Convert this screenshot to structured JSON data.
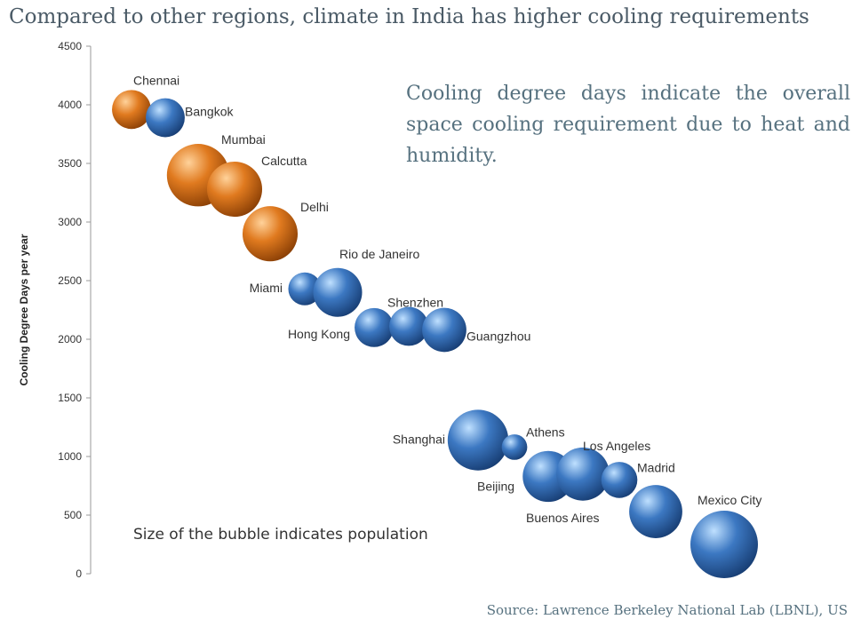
{
  "title": "Compared to other regions, climate in India has higher cooling requirements",
  "note": "Cooling degree days indicate the overall space cooling requirement due to heat and humidity.",
  "bubble_note": "Size of the bubble indicates population",
  "source": "Source: Lawrence Berkeley National Lab (LBNL), US",
  "colors": {
    "india": "#e07a1f",
    "other": "#3c78c2",
    "axis": "#999999"
  },
  "chart_data": {
    "type": "scatter",
    "title": "Compared to other regions, climate in India has higher cooling requirements",
    "ylabel": "Cooling Degree Days per year",
    "xlabel": "",
    "ylim": [
      0,
      4500
    ],
    "yticks": [
      0,
      500,
      1000,
      1500,
      2000,
      2500,
      3000,
      3500,
      4000,
      4500
    ],
    "grid": false,
    "points": [
      {
        "label": "Chennai",
        "x": 1,
        "y": 3960,
        "size": 7,
        "group": "india"
      },
      {
        "label": "Bangkok",
        "x": 2,
        "y": 3890,
        "size": 7,
        "group": "other"
      },
      {
        "label": "Mumbai",
        "x": 3,
        "y": 3400,
        "size": 18,
        "group": "india"
      },
      {
        "label": "Calcutta",
        "x": 4,
        "y": 3280,
        "size": 14,
        "group": "india"
      },
      {
        "label": "Delhi",
        "x": 5,
        "y": 2900,
        "size": 14,
        "group": "india"
      },
      {
        "label": "Miami",
        "x": 6,
        "y": 2430,
        "size": 5,
        "group": "other"
      },
      {
        "label": "Rio de Janeiro",
        "x": 7,
        "y": 2400,
        "size": 11,
        "group": "other"
      },
      {
        "label": "Hong Kong",
        "x": 8,
        "y": 2100,
        "size": 7,
        "group": "other"
      },
      {
        "label": "Shenzhen",
        "x": 9,
        "y": 2110,
        "size": 7,
        "group": "other"
      },
      {
        "label": "Guangzhou",
        "x": 10,
        "y": 2080,
        "size": 9,
        "group": "other"
      },
      {
        "label": "Shanghai",
        "x": 11,
        "y": 1140,
        "size": 17,
        "group": "other"
      },
      {
        "label": "Athens",
        "x": 12,
        "y": 1080,
        "size": 3,
        "group": "other"
      },
      {
        "label": "Beijing",
        "x": 13,
        "y": 830,
        "size": 12,
        "group": "other"
      },
      {
        "label": "Los Angeles",
        "x": 14,
        "y": 850,
        "size": 13,
        "group": "other"
      },
      {
        "label": "Madrid",
        "x": 15,
        "y": 800,
        "size": 6,
        "group": "other"
      },
      {
        "label": "Buenos Aires",
        "x": 16,
        "y": 530,
        "size": 13,
        "group": "other"
      },
      {
        "label": "Mexico City",
        "x": 17,
        "y": 250,
        "size": 21,
        "group": "other"
      }
    ]
  }
}
